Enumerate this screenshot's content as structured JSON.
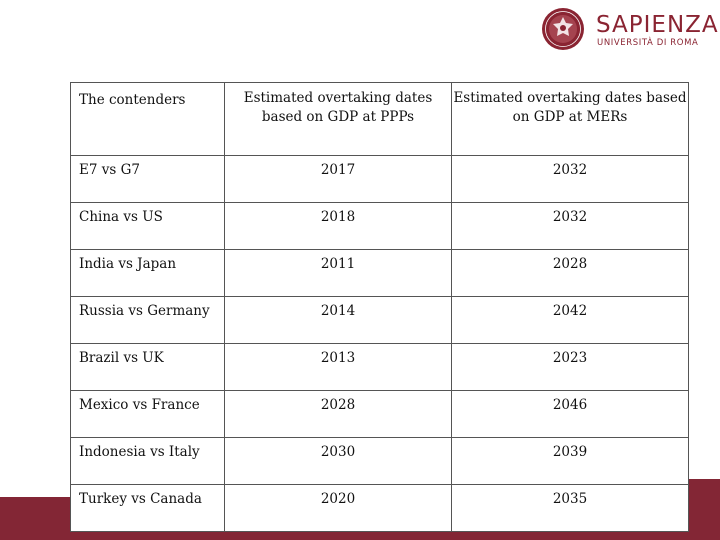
{
  "logo": {
    "name": "SAPIENZA",
    "subtitle": "UNIVERSITÀ DI ROMA",
    "brand_color": "#8a2432"
  },
  "footer": {
    "band_color": "#832635"
  },
  "table": {
    "headers": [
      "The contenders",
      "Estimated overtaking dates based on GDP at PPPs",
      "Estimated overtaking dates based on GDP at MERs"
    ],
    "rows": [
      {
        "contenders": "E7 vs G7",
        "ppp": "2017",
        "mer": "2032"
      },
      {
        "contenders": "China vs US",
        "ppp": "2018",
        "mer": "2032"
      },
      {
        "contenders": "India vs Japan",
        "ppp": "2011",
        "mer": "2028"
      },
      {
        "contenders": "Russia vs Germany",
        "ppp": "2014",
        "mer": "2042"
      },
      {
        "contenders": "Brazil vs UK",
        "ppp": "2013",
        "mer": "2023"
      },
      {
        "contenders": "Mexico vs France",
        "ppp": "2028",
        "mer": "2046"
      },
      {
        "contenders": "Indonesia vs Italy",
        "ppp": "2030",
        "mer": "2039"
      },
      {
        "contenders": "Turkey vs Canada",
        "ppp": "2020",
        "mer": "2035"
      }
    ]
  }
}
